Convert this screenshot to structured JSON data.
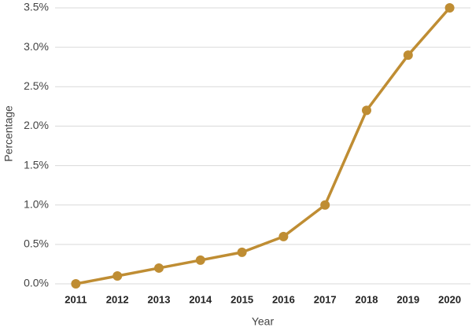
{
  "chart_data": {
    "type": "line",
    "x_label": "Year",
    "y_label": "Percentage",
    "categories": [
      "2011",
      "2012",
      "2013",
      "2014",
      "2015",
      "2016",
      "2017",
      "2018",
      "2019",
      "2020"
    ],
    "values": [
      0,
      0.1,
      0.2,
      0.3,
      0.4,
      0.6,
      1.0,
      2.2,
      2.9,
      3.5
    ],
    "color": "#bf8d33",
    "ylim": [
      0,
      3.5
    ],
    "yticks": [
      {
        "value": 0,
        "label": "0.0%"
      },
      {
        "value": 0.5,
        "label": "0.5%"
      },
      {
        "value": 1,
        "label": "1.0%"
      },
      {
        "value": 1.5,
        "label": "1.5%"
      },
      {
        "value": 2,
        "label": "2.0%"
      },
      {
        "value": 2.5,
        "label": "2.5%"
      },
      {
        "value": 3,
        "label": "3.0%"
      },
      {
        "value": 3.5,
        "label": "3.5%"
      }
    ],
    "grid": true
  }
}
